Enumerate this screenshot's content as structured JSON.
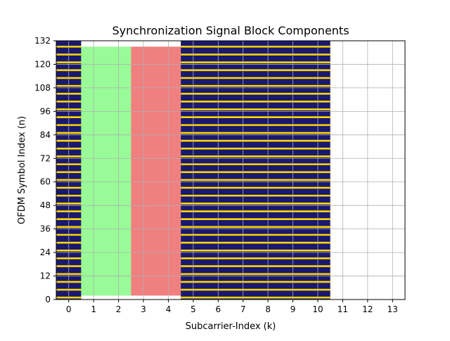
{
  "chart_data": {
    "type": "heatmap",
    "title": "Synchronization Signal Block Components",
    "xlabel": "Subcarrier-Index (k)",
    "ylabel": "OFDM Symbol Index (n)",
    "xlim": [
      -0.5,
      13.5
    ],
    "ylim": [
      0,
      132
    ],
    "xticks": [
      0,
      1,
      2,
      3,
      4,
      5,
      6,
      7,
      8,
      9,
      10,
      11,
      12,
      13
    ],
    "yticks": [
      0,
      12,
      24,
      36,
      48,
      60,
      72,
      84,
      96,
      108,
      120,
      132
    ],
    "grid": true,
    "regions": [
      {
        "x": [
          -0.5,
          0.5
        ],
        "y": [
          0,
          132
        ],
        "color": "#191970",
        "striped": true
      },
      {
        "x": [
          0.5,
          2.5
        ],
        "y": [
          2,
          129
        ],
        "color": "#98fb98",
        "striped": false
      },
      {
        "x": [
          2.5,
          4.5
        ],
        "y": [
          2,
          129
        ],
        "color": "#f08080",
        "striped": false
      },
      {
        "x": [
          4.5,
          10.5
        ],
        "y": [
          0,
          132
        ],
        "color": "#191970",
        "striped": true
      }
    ],
    "stripe_color": "#ffd700",
    "stripe_period": 4
  }
}
